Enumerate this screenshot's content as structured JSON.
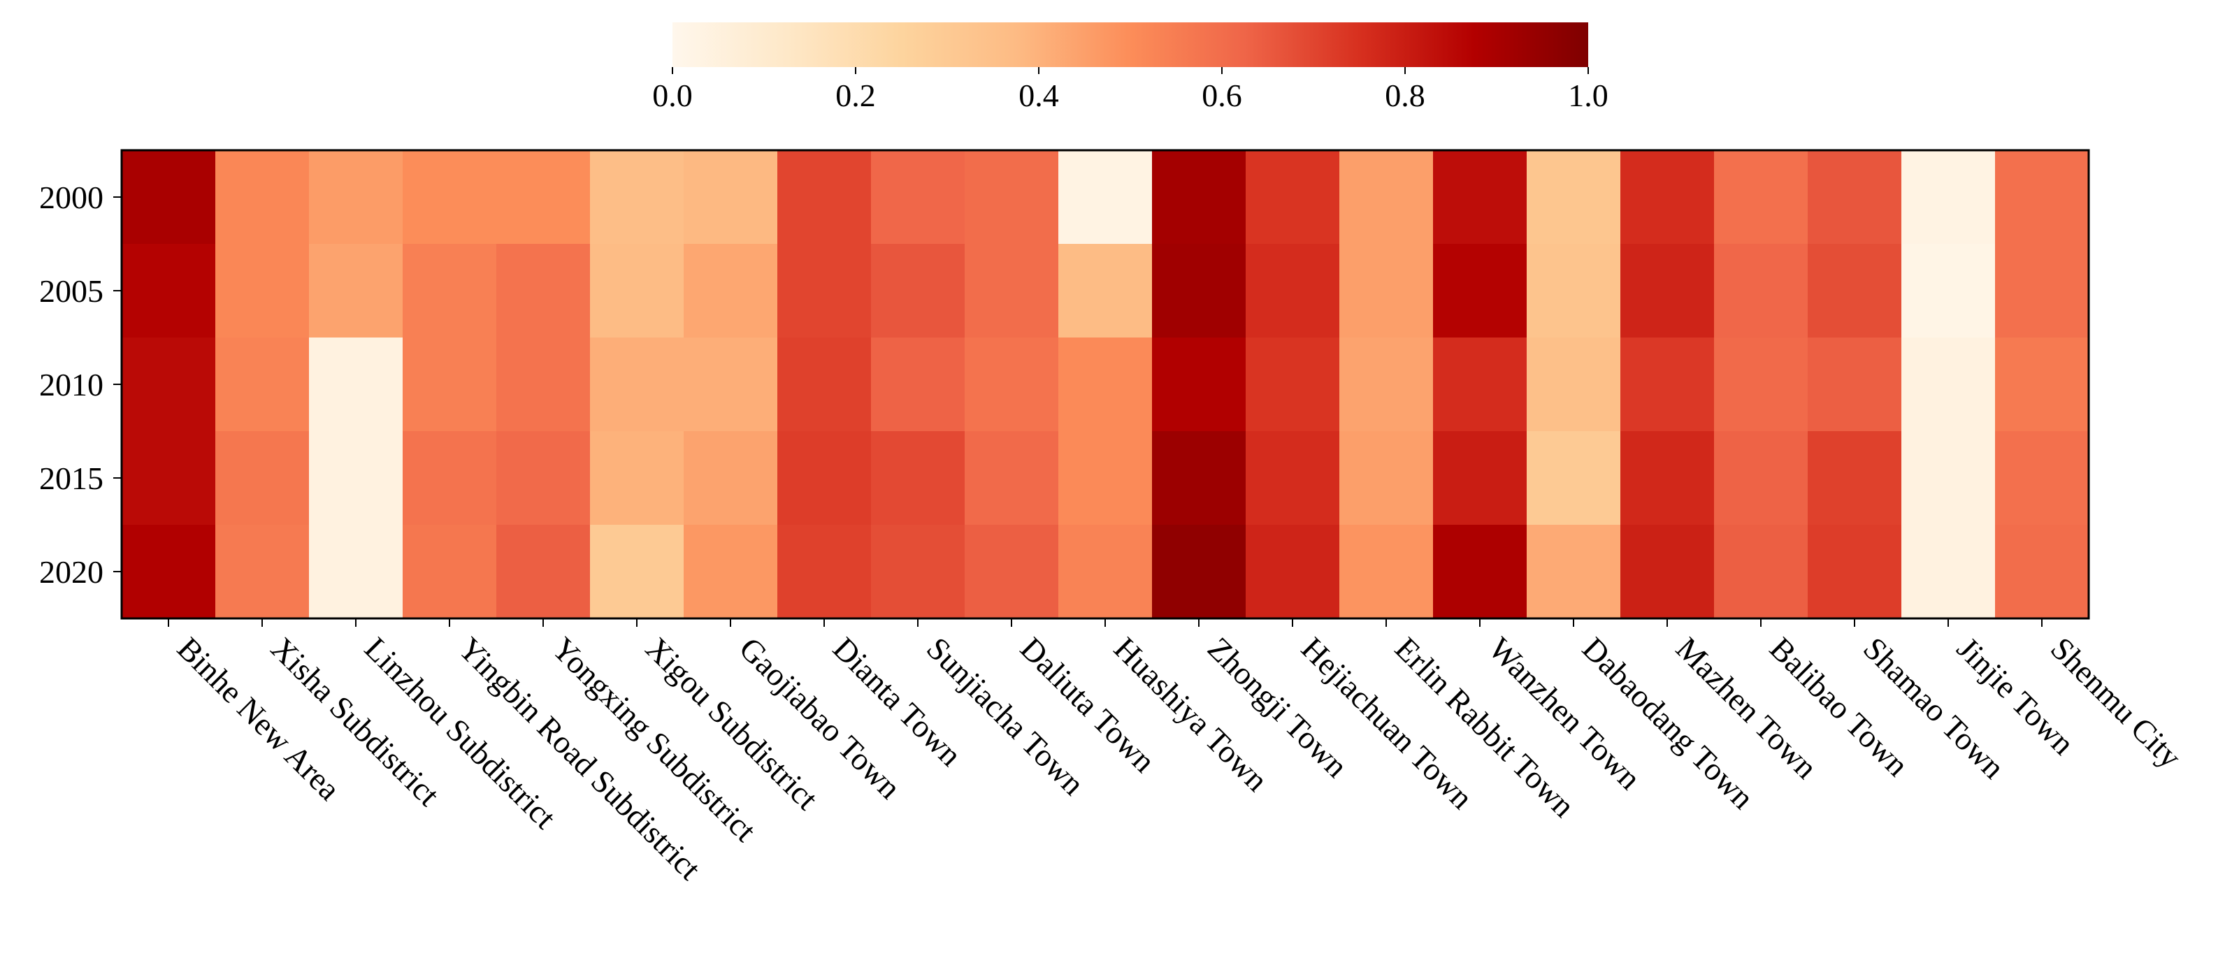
{
  "chart_data": {
    "type": "heatmap",
    "title": "",
    "xlabel": "",
    "ylabel": "",
    "rows": [
      "2000",
      "2005",
      "2010",
      "2015",
      "2020"
    ],
    "columns": [
      "Binhe New Area",
      "Xisha Subdistrict",
      "Linzhou Subdistrict",
      "Yingbin Road Subdistrict",
      "Yongxing Subdistrict",
      "Xigou Subdistrict",
      "Gaojiabao Town",
      "Dianta Town",
      "Sunjiacha Town",
      "Daliuta Town",
      "Huashiya Town",
      "Zhongji Town",
      "Hejiachuan Town",
      "Erlin Rabbit Town",
      "Wanzhen Town",
      "Dabaodang Town",
      "Mazhen Town",
      "Balibao Town",
      "Shamao Town",
      "Jinjie Town",
      "Shenmu City"
    ],
    "values": [
      [
        0.9,
        0.52,
        0.46,
        0.5,
        0.5,
        0.36,
        0.38,
        0.7,
        0.62,
        0.6,
        0.03,
        0.91,
        0.74,
        0.45,
        0.84,
        0.32,
        0.76,
        0.59,
        0.66,
        0.03,
        0.59
      ],
      [
        0.87,
        0.52,
        0.44,
        0.54,
        0.58,
        0.37,
        0.43,
        0.7,
        0.66,
        0.6,
        0.37,
        0.92,
        0.76,
        0.45,
        0.87,
        0.33,
        0.78,
        0.62,
        0.68,
        0.02,
        0.59
      ],
      [
        0.85,
        0.53,
        0.04,
        0.54,
        0.58,
        0.41,
        0.41,
        0.71,
        0.63,
        0.58,
        0.51,
        0.88,
        0.74,
        0.44,
        0.76,
        0.35,
        0.73,
        0.61,
        0.64,
        0.04,
        0.56
      ],
      [
        0.85,
        0.57,
        0.04,
        0.58,
        0.61,
        0.4,
        0.44,
        0.72,
        0.69,
        0.61,
        0.51,
        0.93,
        0.76,
        0.45,
        0.8,
        0.3,
        0.77,
        0.63,
        0.71,
        0.04,
        0.59
      ],
      [
        0.88,
        0.56,
        0.04,
        0.57,
        0.64,
        0.3,
        0.47,
        0.71,
        0.68,
        0.64,
        0.53,
        0.96,
        0.78,
        0.48,
        0.89,
        0.42,
        0.79,
        0.64,
        0.72,
        0.04,
        0.6
      ]
    ],
    "colorbar": {
      "colormap": "OrRd",
      "vmin": 0.0,
      "vmax": 1.0,
      "ticks": [
        "0.0",
        "0.2",
        "0.4",
        "0.6",
        "0.8",
        "1.0"
      ],
      "placement": "top"
    },
    "colors": {
      "stops": [
        [
          0.0,
          "#fff7ec"
        ],
        [
          0.125,
          "#fee8c8"
        ],
        [
          0.25,
          "#fdd49e"
        ],
        [
          0.375,
          "#fdbb84"
        ],
        [
          0.5,
          "#fc8d59"
        ],
        [
          0.625,
          "#ef6548"
        ],
        [
          0.75,
          "#d7301f"
        ],
        [
          0.875,
          "#b30000"
        ],
        [
          1.0,
          "#7f0000"
        ]
      ],
      "frame": "#000000"
    }
  }
}
